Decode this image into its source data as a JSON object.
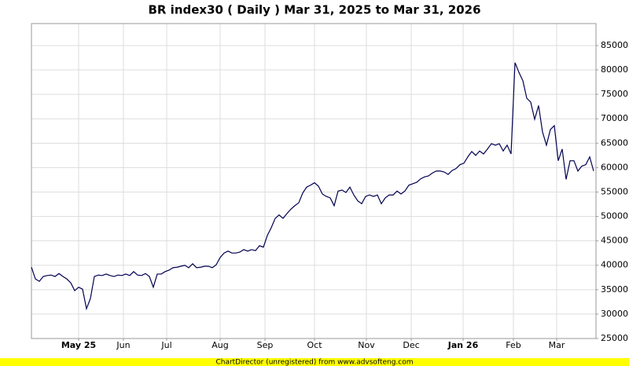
{
  "chart_data": {
    "type": "line",
    "title": "BR index30 ( Daily ) Mar 31, 2025 to Mar 31, 2026",
    "footer": "ChartDirector (unregistered) from www.advsofteng.com",
    "color": "#000050",
    "grid": true,
    "xlim": [
      0,
      143.6
    ],
    "xticks": [
      {
        "value": 12,
        "label": "May 25"
      },
      {
        "value": 23.4,
        "label": "Jun"
      },
      {
        "value": 34.4,
        "label": "Jul"
      },
      {
        "value": 48,
        "label": "Aug"
      },
      {
        "value": 59.4,
        "label": "Sep"
      },
      {
        "value": 72,
        "label": "Oct"
      },
      {
        "value": 85.2,
        "label": "Nov"
      },
      {
        "value": 96.6,
        "label": "Dec"
      },
      {
        "value": 109.8,
        "label": "Jan 26"
      },
      {
        "value": 122.6,
        "label": "Feb"
      },
      {
        "value": 133.6,
        "label": "Mar"
      }
    ],
    "ylim": [
      25000,
      89500
    ],
    "yticks": [
      25000,
      30000,
      35000,
      40000,
      45000,
      50000,
      55000,
      60000,
      65000,
      70000,
      75000,
      80000,
      85000
    ],
    "values": [
      39600,
      37200,
      36700,
      37700,
      37900,
      38000,
      37700,
      38300,
      37700,
      37200,
      36400,
      34800,
      35500,
      35100,
      31100,
      33200,
      37700,
      38000,
      37900,
      38200,
      37900,
      37700,
      38000,
      37900,
      38200,
      37900,
      38700,
      38000,
      37900,
      38300,
      37700,
      35500,
      38200,
      38200,
      38700,
      39000,
      39500,
      39600,
      39800,
      40000,
      39500,
      40300,
      39500,
      39600,
      39800,
      39800,
      39500,
      40100,
      41600,
      42500,
      42900,
      42500,
      42500,
      42700,
      43200,
      42900,
      43200,
      43000,
      44000,
      43700,
      46100,
      47700,
      49600,
      50300,
      49600,
      50600,
      51500,
      52200,
      52800,
      54800,
      56000,
      56400,
      56900,
      56200,
      54600,
      54100,
      53800,
      52200,
      55200,
      55400,
      54900,
      56000,
      54400,
      53200,
      52600,
      54100,
      54400,
      54100,
      54400,
      52600,
      53800,
      54400,
      54400,
      55200,
      54600,
      55200,
      56400,
      56700,
      57000,
      57700,
      58100,
      58300,
      58900,
      59300,
      59300,
      59100,
      58600,
      59400,
      59800,
      60600,
      60900,
      62200,
      63300,
      62500,
      63400,
      62800,
      63800,
      64900,
      64600,
      64900,
      63400,
      64600,
      62800,
      81500,
      79500,
      77800,
      74200,
      73400,
      69900,
      72700,
      67300,
      64600,
      67800,
      68600,
      61400,
      63800,
      57600,
      61400,
      61400,
      59300,
      60300,
      60600,
      62200,
      59300
    ]
  }
}
